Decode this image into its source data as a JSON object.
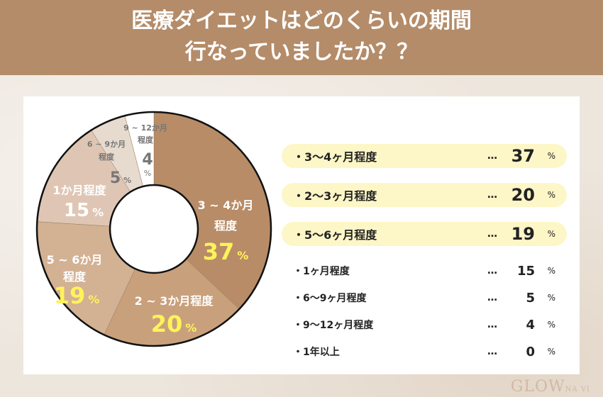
{
  "title_lines": [
    "医療ダイエットはどのくらいの期間",
    "行なっていましたか？？"
  ],
  "chart_data": {
    "type": "pie",
    "donut": true,
    "categories": [
      "3～4か月程度",
      "2～3か月程度",
      "5～6か月程度",
      "1か月程度",
      "6～9か月程度",
      "9～12か月程度",
      "1年以上"
    ],
    "values": [
      37,
      20,
      19,
      15,
      5,
      4,
      0
    ],
    "colors": [
      "#b88c67",
      "#c9a07c",
      "#d3b193",
      "#dfc6b4",
      "#e7dace",
      "#ffffff",
      "#ffffff"
    ],
    "slice_labels": [
      {
        "name": [
          "3 ~ 4か月",
          "程度"
        ],
        "value": "37",
        "pct": "%"
      },
      {
        "name": [
          "2 ~ 3か月程度"
        ],
        "value": "20",
        "pct": "%"
      },
      {
        "name": [
          "5 ~ 6か月",
          "程度"
        ],
        "value": "19",
        "pct": "%"
      },
      {
        "name": [
          "1か月程度"
        ],
        "value": "15",
        "pct": "%"
      },
      {
        "name": [
          "6 ~ 9か月",
          "程度"
        ],
        "value": "5",
        "pct": "%"
      },
      {
        "name": [
          "9 ~ 12か月",
          "程度"
        ],
        "value": "4",
        "pct": "%"
      }
    ]
  },
  "legend": [
    {
      "label": "・3〜4ヶ月程度",
      "dots": "…",
      "value": "37",
      "pct": "%",
      "highlight": true
    },
    {
      "label": "・2〜3ヶ月程度",
      "dots": "…",
      "value": "20",
      "pct": "%",
      "highlight": true
    },
    {
      "label": "・5〜6ヶ月程度",
      "dots": "…",
      "value": "19",
      "pct": "%",
      "highlight": true
    },
    {
      "label": "・1ヶ月程度",
      "dots": "…",
      "value": "15",
      "pct": "%",
      "highlight": false
    },
    {
      "label": "・6〜9ヶ月程度",
      "dots": "…",
      "value": "5",
      "pct": "%",
      "highlight": false
    },
    {
      "label": "・9〜12ヶ月程度",
      "dots": "…",
      "value": "4",
      "pct": "%",
      "highlight": false
    },
    {
      "label": "・1年以上",
      "dots": "…",
      "value": "0",
      "pct": "%",
      "highlight": false
    }
  ],
  "logo": "GLOW NAVI"
}
